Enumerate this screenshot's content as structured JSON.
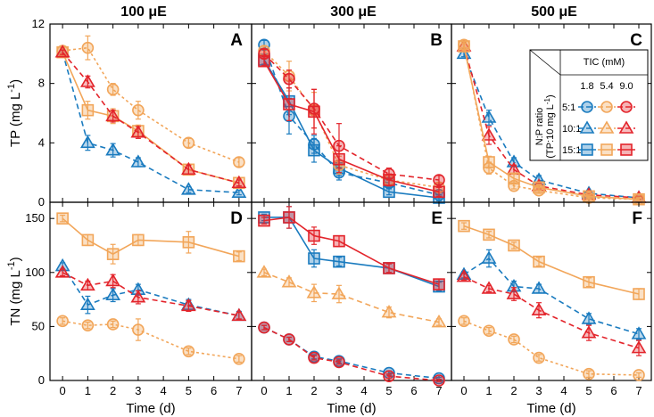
{
  "chart_data": {
    "type": "line",
    "col_titles": [
      "100 μE",
      "300 μE",
      "500 μE"
    ],
    "panel_labels": [
      "A",
      "B",
      "C",
      "D",
      "E",
      "F"
    ],
    "xlabel": "Time (d)",
    "x_ticks": [
      "0",
      "1",
      "2",
      "3",
      "4",
      "5",
      "6",
      "7"
    ],
    "xlim": [
      -0.5,
      7.5
    ],
    "rows": [
      {
        "ylabel_main": "TP",
        "ylabel_unit": "(mg L",
        "ylabel_sup": "-1",
        "ylabel_close": ")",
        "ylim": [
          0,
          12
        ],
        "y_ticks": [
          "0",
          "4",
          "8",
          "12"
        ],
        "y_tick_values": [
          0,
          4,
          8,
          12
        ]
      },
      {
        "ylabel_main": "TN",
        "ylabel_unit": "(mg L",
        "ylabel_sup": "-1",
        "ylabel_close": ")",
        "ylim": [
          0,
          165
        ],
        "y_ticks": [
          "0",
          "50",
          "100",
          "150"
        ],
        "y_tick_values": [
          0,
          50,
          100,
          150
        ]
      }
    ],
    "legend": {
      "header": "TIC (mM)",
      "tic_values": [
        "1.8",
        "5.4",
        "9.0"
      ],
      "ratio_label_line1": "N:P ratio",
      "ratio_label_line2": "(TP:10 mg L",
      "ratio_label_sup": "-1",
      "ratio_label_close": ")",
      "ratios": [
        "5:1",
        "10:1",
        "15:1"
      ]
    },
    "colors": {
      "blue": "#1a7bbf",
      "orange": "#f2a65a",
      "red": "#e3242b"
    },
    "panels": [
      {
        "label": "A",
        "series": [
          {
            "name": "10:1, 1.8 mM",
            "marker": "triangle",
            "color": "#1a7bbf",
            "dash": "dashed",
            "x": [
              0,
              1,
              2,
              3,
              5,
              7
            ],
            "y": [
              10.1,
              4.0,
              3.5,
              2.7,
              0.85,
              0.65
            ],
            "err": [
              0.15,
              0.5,
              0.45,
              0.3,
              0.2,
              0.15
            ]
          },
          {
            "name": "15:1, 5.4 mM",
            "marker": "square",
            "color": "#f2a65a",
            "dash": "solid",
            "x": [
              0,
              1,
              2,
              3,
              5,
              7
            ],
            "y": [
              10.1,
              6.2,
              5.8,
              4.8,
              2.2,
              1.3
            ],
            "err": [
              0.15,
              0.6,
              0.5,
              0.4,
              0.3,
              0.3
            ]
          },
          {
            "name": "5:1, 5.4 mM",
            "marker": "circle",
            "color": "#f2a65a",
            "dash": "dotted",
            "x": [
              0,
              1,
              2,
              3,
              5,
              7
            ],
            "y": [
              10.2,
              10.4,
              7.6,
              6.2,
              4.0,
              2.7
            ],
            "err": [
              0.2,
              0.8,
              0.4,
              0.6,
              0.3,
              0.3
            ]
          },
          {
            "name": "10:1, 9.0 mM",
            "marker": "triangle",
            "color": "#e3242b",
            "dash": "dashed",
            "x": [
              0,
              1,
              2,
              3,
              5,
              7
            ],
            "y": [
              10.1,
              8.1,
              5.8,
              4.7,
              2.2,
              1.3
            ],
            "err": [
              0.15,
              0.4,
              0.4,
              0.4,
              0.3,
              0.2
            ]
          }
        ]
      },
      {
        "label": "B",
        "series": [
          {
            "name": "5:1, 1.8 mM",
            "marker": "circle",
            "color": "#1a7bbf",
            "dash": "dashed",
            "x": [
              0,
              1,
              2,
              3,
              5,
              7
            ],
            "y": [
              10.6,
              5.8,
              3.9,
              2.0,
              1.3,
              0.5
            ],
            "err": [
              0.3,
              1.2,
              0.6,
              0.5,
              0.3,
              0.2
            ]
          },
          {
            "name": "15:1, 1.8 mM",
            "marker": "square",
            "color": "#1a7bbf",
            "dash": "solid",
            "x": [
              0,
              1,
              2,
              3,
              5,
              7
            ],
            "y": [
              9.6,
              6.8,
              3.5,
              2.3,
              0.7,
              0.3
            ],
            "err": [
              0.3,
              0.9,
              0.8,
              0.5,
              0.2,
              0.2
            ]
          },
          {
            "name": "5:1, 5.4 mM",
            "marker": "circle",
            "color": "#f2a65a",
            "dash": "dotted",
            "x": [
              0,
              1,
              2,
              3,
              5,
              7
            ],
            "y": [
              10.2,
              8.5,
              6.2,
              2.5,
              1.5,
              1.0
            ],
            "err": [
              0.3,
              1.0,
              1.2,
              0.6,
              0.4,
              0.3
            ]
          },
          {
            "name": "5:1, 9.0 mM",
            "marker": "circle",
            "color": "#e3242b",
            "dash": "dashed",
            "x": [
              0,
              1,
              2,
              3,
              5,
              7
            ],
            "y": [
              10.0,
              8.3,
              6.3,
              3.8,
              1.9,
              1.5
            ],
            "err": [
              0.3,
              0.6,
              1.3,
              1.5,
              0.4,
              0.3
            ]
          },
          {
            "name": "15:1, 9.0 mM",
            "marker": "square",
            "color": "#e3242b",
            "dash": "solid",
            "x": [
              0,
              1,
              2,
              3,
              5,
              7
            ],
            "y": [
              9.5,
              6.6,
              6.1,
              2.9,
              1.5,
              0.7
            ],
            "err": [
              0.3,
              1.1,
              1.5,
              0.9,
              0.4,
              0.3
            ]
          }
        ]
      },
      {
        "label": "C",
        "series": [
          {
            "name": "10:1, 1.8 mM",
            "marker": "triangle",
            "color": "#1a7bbf",
            "dash": "dashed",
            "x": [
              0,
              1,
              2,
              3,
              5,
              7
            ],
            "y": [
              10.0,
              5.7,
              2.7,
              1.5,
              0.6,
              0.3
            ],
            "err": [
              0.2,
              0.5,
              0.3,
              0.3,
              0.2,
              0.1
            ]
          },
          {
            "name": "10:1, 9.0 mM",
            "marker": "triangle",
            "color": "#e3242b",
            "dash": "dashed",
            "x": [
              0,
              1,
              2,
              3,
              5,
              7
            ],
            "y": [
              10.5,
              4.5,
              2.2,
              1.1,
              0.5,
              0.3
            ],
            "err": [
              0.2,
              0.6,
              0.3,
              0.2,
              0.1,
              0.1
            ]
          },
          {
            "name": "15:1, 5.4 mM",
            "marker": "square",
            "color": "#f2a65a",
            "dash": "solid",
            "x": [
              0,
              1,
              2,
              3,
              5,
              7
            ],
            "y": [
              10.5,
              2.7,
              1.6,
              1.0,
              0.4,
              0.2
            ],
            "err": [
              0.2,
              0.4,
              0.3,
              0.2,
              0.1,
              0.1
            ]
          },
          {
            "name": "5:1, 5.4 mM",
            "marker": "circle",
            "color": "#f2a65a",
            "dash": "dotted",
            "x": [
              0,
              1,
              2,
              3,
              5,
              7
            ],
            "y": [
              10.6,
              2.3,
              1.1,
              0.8,
              0.3,
              0.2
            ],
            "err": [
              0.2,
              0.4,
              0.2,
              0.2,
              0.1,
              0.1
            ]
          }
        ]
      },
      {
        "label": "D",
        "series": [
          {
            "name": "15:1, 5.4 mM",
            "marker": "square",
            "color": "#f2a65a",
            "dash": "solid",
            "x": [
              0,
              1,
              2,
              3,
              5,
              7
            ],
            "y": [
              150,
              130,
              117,
              130,
              128,
              115
            ],
            "err": [
              3,
              5,
              9,
              5,
              10,
              4
            ]
          },
          {
            "name": "10:1, 1.8 mM",
            "marker": "triangle",
            "color": "#1a7bbf",
            "dash": "dashed",
            "x": [
              0,
              1,
              2,
              3,
              5,
              7
            ],
            "y": [
              106,
              70,
              79,
              84,
              70,
              60
            ],
            "err": [
              3,
              8,
              6,
              5,
              5,
              4
            ]
          },
          {
            "name": "10:1, 9.0 mM",
            "marker": "triangle",
            "color": "#e3242b",
            "dash": "dashed",
            "x": [
              0,
              1,
              2,
              3,
              5,
              7
            ],
            "y": [
              100,
              88,
              92,
              77,
              69,
              60
            ],
            "err": [
              3,
              4,
              6,
              6,
              5,
              3
            ]
          },
          {
            "name": "5:1, 5.4 mM",
            "marker": "circle",
            "color": "#f2a65a",
            "dash": "dotted",
            "x": [
              0,
              1,
              2,
              3,
              5,
              7
            ],
            "y": [
              55,
              51,
              52,
              47,
              27,
              20
            ],
            "err": [
              3,
              3,
              3,
              10,
              3,
              3
            ]
          }
        ]
      },
      {
        "label": "E",
        "series": [
          {
            "name": "15:1, 1.8 mM",
            "marker": "square",
            "color": "#1a7bbf",
            "dash": "solid",
            "x": [
              0,
              1,
              2,
              3,
              5,
              7
            ],
            "y": [
              151,
              151,
              113,
              110,
              104,
              87
            ],
            "err": [
              3,
              10,
              8,
              4,
              4,
              4
            ]
          },
          {
            "name": "15:1, 9.0 mM",
            "marker": "square",
            "color": "#e3242b",
            "dash": "solid",
            "x": [
              0,
              1,
              2,
              3,
              5,
              7
            ],
            "y": [
              148,
              151,
              134,
              129,
              104,
              89
            ],
            "err": [
              3,
              10,
              8,
              5,
              4,
              5
            ]
          },
          {
            "name": "10:1, 5.4 mM",
            "marker": "triangle",
            "color": "#f2a65a",
            "dash": "dashed",
            "x": [
              0,
              1,
              2,
              3,
              5,
              7
            ],
            "y": [
              100,
              91,
              81,
              80,
              63,
              54
            ],
            "err": [
              3,
              4,
              8,
              8,
              5,
              3
            ]
          },
          {
            "name": "5:1, 1.8 mM",
            "marker": "circle",
            "color": "#1a7bbf",
            "dash": "dashed",
            "x": [
              0,
              1,
              2,
              3,
              5,
              7
            ],
            "y": [
              49,
              38,
              22,
              18,
              7,
              2
            ],
            "err": [
              2,
              2,
              2,
              2,
              2,
              1
            ]
          },
          {
            "name": "5:1, 9.0 mM",
            "marker": "circle",
            "color": "#e3242b",
            "dash": "dashed",
            "x": [
              0,
              1,
              2,
              3,
              5,
              7
            ],
            "y": [
              49,
              38,
              21,
              17,
              4,
              0
            ],
            "err": [
              2,
              2,
              2,
              2,
              2,
              1
            ]
          }
        ]
      },
      {
        "label": "F",
        "series": [
          {
            "name": "15:1, 5.4 mM",
            "marker": "square",
            "color": "#f2a65a",
            "dash": "solid",
            "x": [
              0,
              1,
              2,
              3,
              5,
              7
            ],
            "y": [
              143,
              135,
              125,
              110,
              91,
              80
            ],
            "err": [
              3,
              3,
              3,
              4,
              4,
              5
            ]
          },
          {
            "name": "10:1, 1.8 mM",
            "marker": "triangle",
            "color": "#1a7bbf",
            "dash": "dashed",
            "x": [
              0,
              1,
              2,
              3,
              5,
              7
            ],
            "y": [
              98,
              113,
              87,
              85,
              57,
              43
            ],
            "err": [
              3,
              8,
              5,
              4,
              5,
              5
            ]
          },
          {
            "name": "10:1, 9.0 mM",
            "marker": "triangle",
            "color": "#e3242b",
            "dash": "dashed",
            "x": [
              0,
              1,
              2,
              3,
              5,
              7
            ],
            "y": [
              96,
              85,
              80,
              65,
              44,
              30
            ],
            "err": [
              3,
              3,
              6,
              7,
              7,
              7
            ]
          },
          {
            "name": "5:1, 5.4 mM",
            "marker": "circle",
            "color": "#f2a65a",
            "dash": "dotted",
            "x": [
              0,
              1,
              2,
              3,
              5,
              7
            ],
            "y": [
              55,
              46,
              38,
              21,
              6,
              5
            ],
            "err": [
              3,
              3,
              3,
              3,
              3,
              2
            ]
          }
        ]
      }
    ]
  }
}
